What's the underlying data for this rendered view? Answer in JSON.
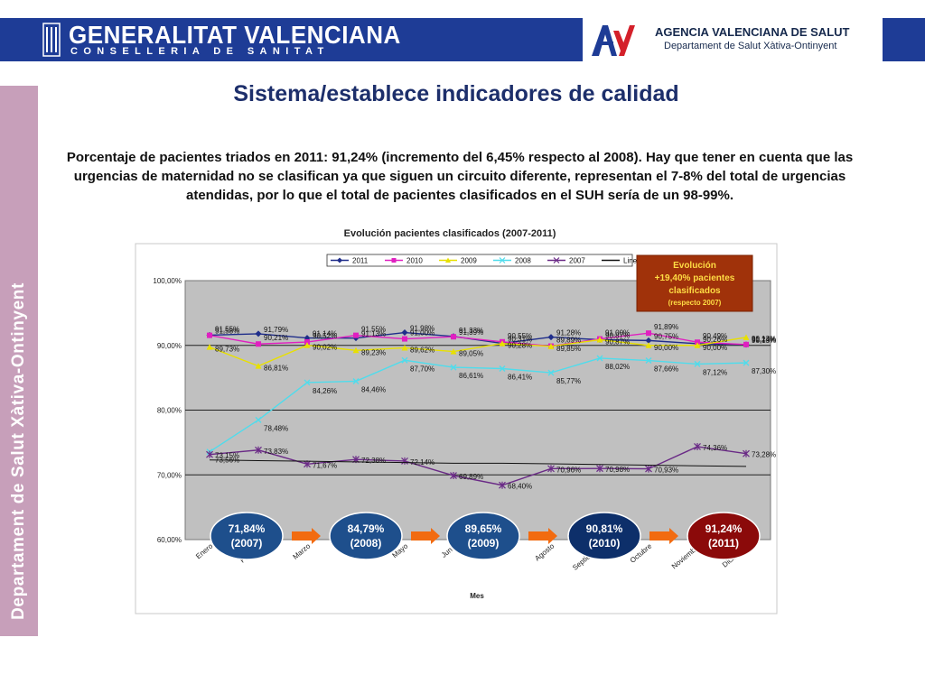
{
  "header": {
    "left_title": "GENERALITAT VALENCIANA",
    "left_subtitle": "CONSELLERIA DE SANITAT",
    "right_title": "AGENCIA VALENCIANA DE SALUT",
    "right_subtitle": "Departament de Salut Xàtiva-Ontinyent",
    "colors": {
      "bar": "#1e3c96",
      "logo_red": "#d4202a",
      "logo_blue": "#1e3c96"
    }
  },
  "sidebar": {
    "text": "Departament de Salut Xàtiva-Ontinyent",
    "color": "#c79fba"
  },
  "slide": {
    "title": "Sistema/establece indicadores de calidad",
    "body": "Porcentaje de pacientes triados en 2011: 91,24% (incremento del 6,45% respecto al 2008). Hay que tener en cuenta que las urgencias de maternidad no se clasifican ya que siguen un circuito diferente, representan el 7-8% del total de urgencias atendidas, por lo que el total de pacientes clasificados en el SUH sería de un 98-99%."
  },
  "chart_data": {
    "type": "line",
    "title": "Evolución pacientes clasificados (2007-2011)",
    "xlabel": "Mes",
    "ylabel": "",
    "ylim": [
      60,
      100
    ],
    "yticks": [
      "60,00%",
      "70,00%",
      "80,00%",
      "90,00%",
      "100,00%"
    ],
    "grid": true,
    "legend_position": "top",
    "categories": [
      "Enero",
      "Febrero",
      "Marzo",
      "Abril",
      "Mayo",
      "Junio",
      "Julio",
      "Agosto",
      "Septiembre",
      "Octubre",
      "Noviembre",
      "Diciembre"
    ],
    "series": [
      {
        "name": "2011",
        "color": "#1f2d8a",
        "marker": "diamond",
        "values": [
          91.58,
          91.79,
          91.14,
          91.13,
          91.98,
          91.39,
          90.31,
          91.28,
          90.87,
          90.75,
          90.26,
          90.13
        ],
        "labels": [
          "91,58%",
          "91,79%",
          "91,14%",
          "91,13%",
          "91,98%",
          "91,39%",
          "90,31%",
          "91,28%",
          "90,87%",
          "90,75%",
          "90,26%",
          "90,13%"
        ]
      },
      {
        "name": "2010",
        "color": "#e020c0",
        "marker": "square",
        "values": [
          91.55,
          90.21,
          90.52,
          91.55,
          91.0,
          91.33,
          90.55,
          89.89,
          91.0,
          91.89,
          90.49,
          90.13
        ],
        "labels": [
          "91,55%",
          "90,21%",
          "90,52%",
          "91,55%",
          "91,00%",
          "91,33%",
          "90,55%",
          "89,89%",
          "91,00%",
          "91,89%",
          "90,49%",
          "90,13%"
        ]
      },
      {
        "name": "2009",
        "color": "#e8e000",
        "marker": "triangle",
        "values": [
          89.73,
          86.81,
          90.02,
          89.23,
          89.62,
          89.05,
          90.28,
          89.85,
          90.87,
          90.0,
          90.0,
          91.24
        ],
        "labels": [
          "89,73%",
          "86,81%",
          "90,02%",
          "89,23%",
          "89,62%",
          "89,05%",
          "90,28%",
          "89,85%",
          "90,87%",
          "90,00%",
          "90,00%",
          "91,24%"
        ]
      },
      {
        "name": "2008",
        "color": "#4fdcec",
        "marker": "x",
        "values": [
          73.56,
          78.48,
          84.26,
          84.46,
          87.7,
          86.61,
          86.41,
          85.77,
          88.02,
          87.66,
          87.12,
          87.3
        ],
        "labels": [
          "73,56%",
          "78,48%",
          "84,26%",
          "84,46%",
          "87,70%",
          "86,61%",
          "86,41%",
          "85,77%",
          "88,02%",
          "87,66%",
          "87,12%",
          "87,30%"
        ]
      },
      {
        "name": "2007",
        "color": "#6a2a86",
        "marker": "star",
        "values": [
          73.15,
          73.83,
          71.67,
          72.38,
          72.14,
          69.89,
          68.4,
          70.96,
          70.98,
          70.93,
          74.36,
          73.28
        ],
        "labels": [
          "73,15%",
          "73,83%",
          "71,67%",
          "72,38%",
          "72,14%",
          "69,89%",
          "68,40%",
          "70,96%",
          "70,98%",
          "70,93%",
          "74,36%",
          "73,28%"
        ]
      },
      {
        "name": "Lineal (2007)",
        "color": "#111111",
        "marker": "none",
        "trendline_of": "2007",
        "values": [
          72.3,
          72.2,
          72.1,
          72.0,
          71.9,
          71.8,
          71.8,
          71.7,
          71.6,
          71.5,
          71.4,
          71.3
        ]
      }
    ],
    "annotation": {
      "title": "Evolución",
      "line1": "+19,40% pacientes",
      "line2": "clasificados",
      "line3": "(respecto 2007)",
      "color": "#a0320a"
    },
    "summary_bubbles": [
      {
        "value": "71,84%",
        "year": "(2007)",
        "color": "#1e4f8c"
      },
      {
        "value": "84,79%",
        "year": "(2008)",
        "color": "#1e4f8c"
      },
      {
        "value": "89,65%",
        "year": "(2009)",
        "color": "#1e4f8c"
      },
      {
        "value": "90,81%",
        "year": "(2010)",
        "color": "#0d2f6a"
      },
      {
        "value": "91,24%",
        "year": "(2011)",
        "color": "#8b0a0a"
      }
    ],
    "arrow_color": "#f26b10"
  }
}
